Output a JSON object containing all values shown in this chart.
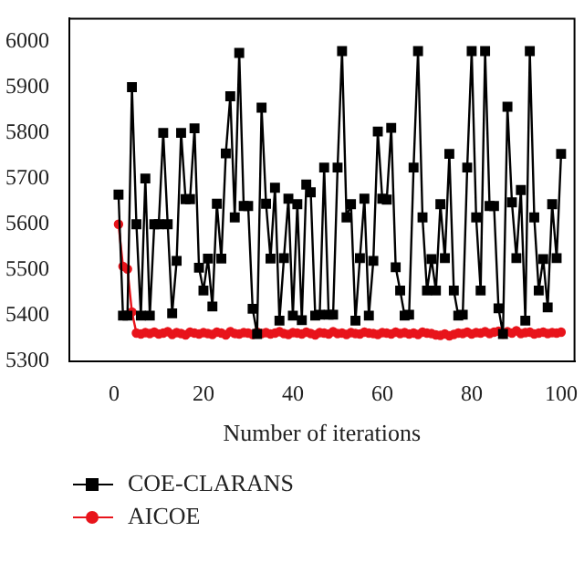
{
  "chart_data": {
    "type": "line",
    "xlabel": "Number of iterations",
    "xlim": [
      -10,
      103
    ],
    "xticks": [
      0,
      20,
      40,
      60,
      80,
      100
    ],
    "ylim": [
      5300,
      6050
    ],
    "yticks": [
      5300,
      5400,
      5500,
      5600,
      5700,
      5800,
      5900,
      6000
    ],
    "grid": false,
    "legend": "bottom left",
    "x": [
      1,
      2,
      3,
      4,
      5,
      6,
      7,
      8,
      9,
      10,
      11,
      12,
      13,
      14,
      15,
      16,
      17,
      18,
      19,
      20,
      21,
      22,
      23,
      24,
      25,
      26,
      27,
      28,
      29,
      30,
      31,
      32,
      33,
      34,
      35,
      36,
      37,
      38,
      39,
      40,
      41,
      42,
      43,
      44,
      45,
      46,
      47,
      48,
      49,
      50,
      51,
      52,
      53,
      54,
      55,
      56,
      57,
      58,
      59,
      60,
      61,
      62,
      63,
      64,
      65,
      66,
      67,
      68,
      69,
      70,
      71,
      72,
      73,
      74,
      75,
      76,
      77,
      78,
      79,
      80,
      81,
      82,
      83,
      84,
      85,
      86,
      87,
      88,
      89,
      90,
      91,
      92,
      93,
      94,
      95,
      96,
      97,
      98,
      99,
      100
    ],
    "series": [
      {
        "name": "COE-CLARANS",
        "color": "#000000",
        "marker": "square",
        "values": [
          5665,
          5400,
          5400,
          5900,
          5600,
          5400,
          5700,
          5400,
          5600,
          5600,
          5800,
          5600,
          5405,
          5520,
          5800,
          5655,
          5655,
          5810,
          5505,
          5455,
          5525,
          5420,
          5645,
          5525,
          5755,
          5880,
          5615,
          5975,
          5640,
          5640,
          5415,
          5360,
          5855,
          5645,
          5525,
          5680,
          5389,
          5526,
          5656,
          5400,
          5644,
          5390,
          5687,
          5670,
          5400,
          5402,
          5724,
          5402,
          5402,
          5724,
          5979,
          5615,
          5644,
          5389,
          5526,
          5656,
          5400,
          5520,
          5803,
          5656,
          5654,
          5811,
          5506,
          5455,
          5400,
          5402,
          5724,
          5979,
          5615,
          5455,
          5524,
          5455,
          5644,
          5526,
          5754,
          5455,
          5400,
          5402,
          5724,
          5979,
          5615,
          5455,
          5979,
          5640,
          5640,
          5416,
          5360,
          5857,
          5648,
          5526,
          5675,
          5389,
          5979,
          5615,
          5455,
          5524,
          5418,
          5644,
          5526,
          5754
        ]
      },
      {
        "name": "AICOE",
        "color": "#e8141b",
        "marker": "circle",
        "values": [
          5600,
          5508,
          5502,
          5408,
          5362,
          5360,
          5363,
          5361,
          5364,
          5360,
          5362,
          5365,
          5359,
          5363,
          5361,
          5358,
          5364,
          5362,
          5360,
          5363,
          5361,
          5359,
          5364,
          5362,
          5358,
          5365,
          5361,
          5360,
          5363,
          5362,
          5359,
          5364,
          5361,
          5363,
          5360,
          5362,
          5365,
          5361,
          5359,
          5363,
          5362,
          5360,
          5364,
          5361,
          5358,
          5363,
          5362,
          5360,
          5365,
          5361,
          5362,
          5359,
          5363,
          5361,
          5360,
          5364,
          5362,
          5361,
          5359,
          5363,
          5362,
          5360,
          5364,
          5361,
          5363,
          5360,
          5362,
          5359,
          5364,
          5362,
          5361,
          5358,
          5357,
          5360,
          5356,
          5359,
          5362,
          5361,
          5364,
          5360,
          5363,
          5362,
          5365,
          5361,
          5364,
          5366,
          5360,
          5365,
          5362,
          5367,
          5361,
          5363,
          5364,
          5360,
          5362,
          5364,
          5361,
          5363,
          5362,
          5364
        ]
      }
    ]
  }
}
